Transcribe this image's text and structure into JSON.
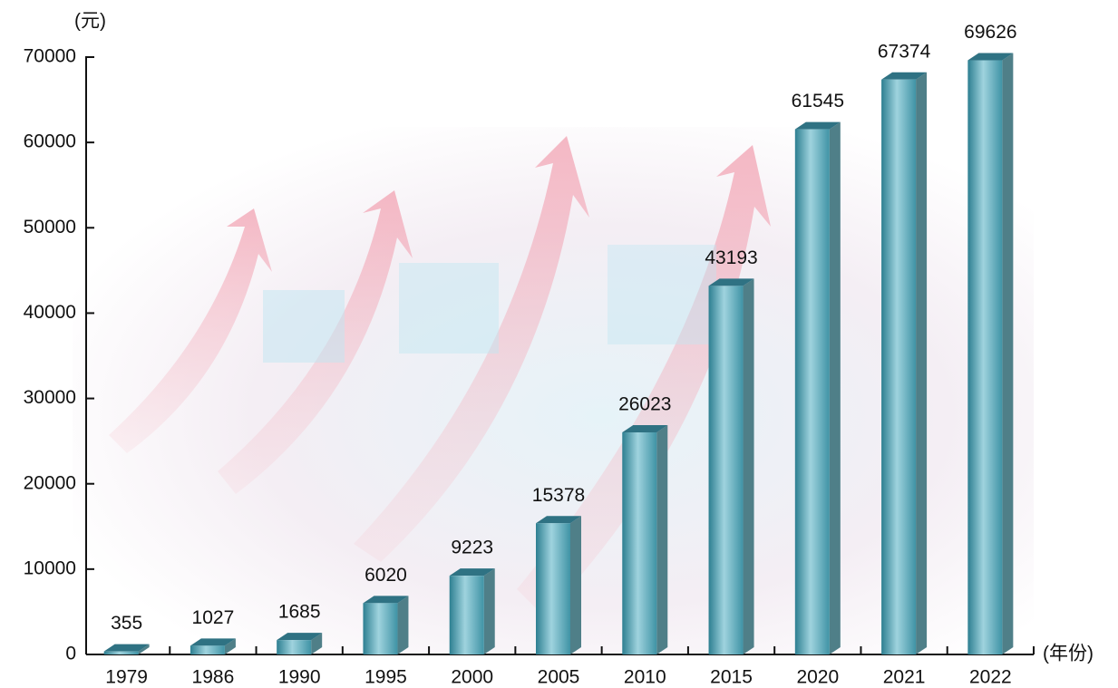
{
  "chart_data": {
    "type": "bar",
    "y_label": "(元)",
    "x_label": "(年份)",
    "categories": [
      "1979",
      "1986",
      "1990",
      "1995",
      "2000",
      "2005",
      "2010",
      "2015",
      "2020",
      "2021",
      "2022"
    ],
    "values": [
      355,
      1027,
      1685,
      6020,
      9223,
      15378,
      26023,
      43193,
      61545,
      67374,
      69626
    ],
    "color": "#3f93a5",
    "ylim": [
      0,
      70000
    ],
    "yticks": [
      0,
      10000,
      20000,
      30000,
      40000,
      50000,
      60000,
      70000
    ],
    "grid": false
  }
}
